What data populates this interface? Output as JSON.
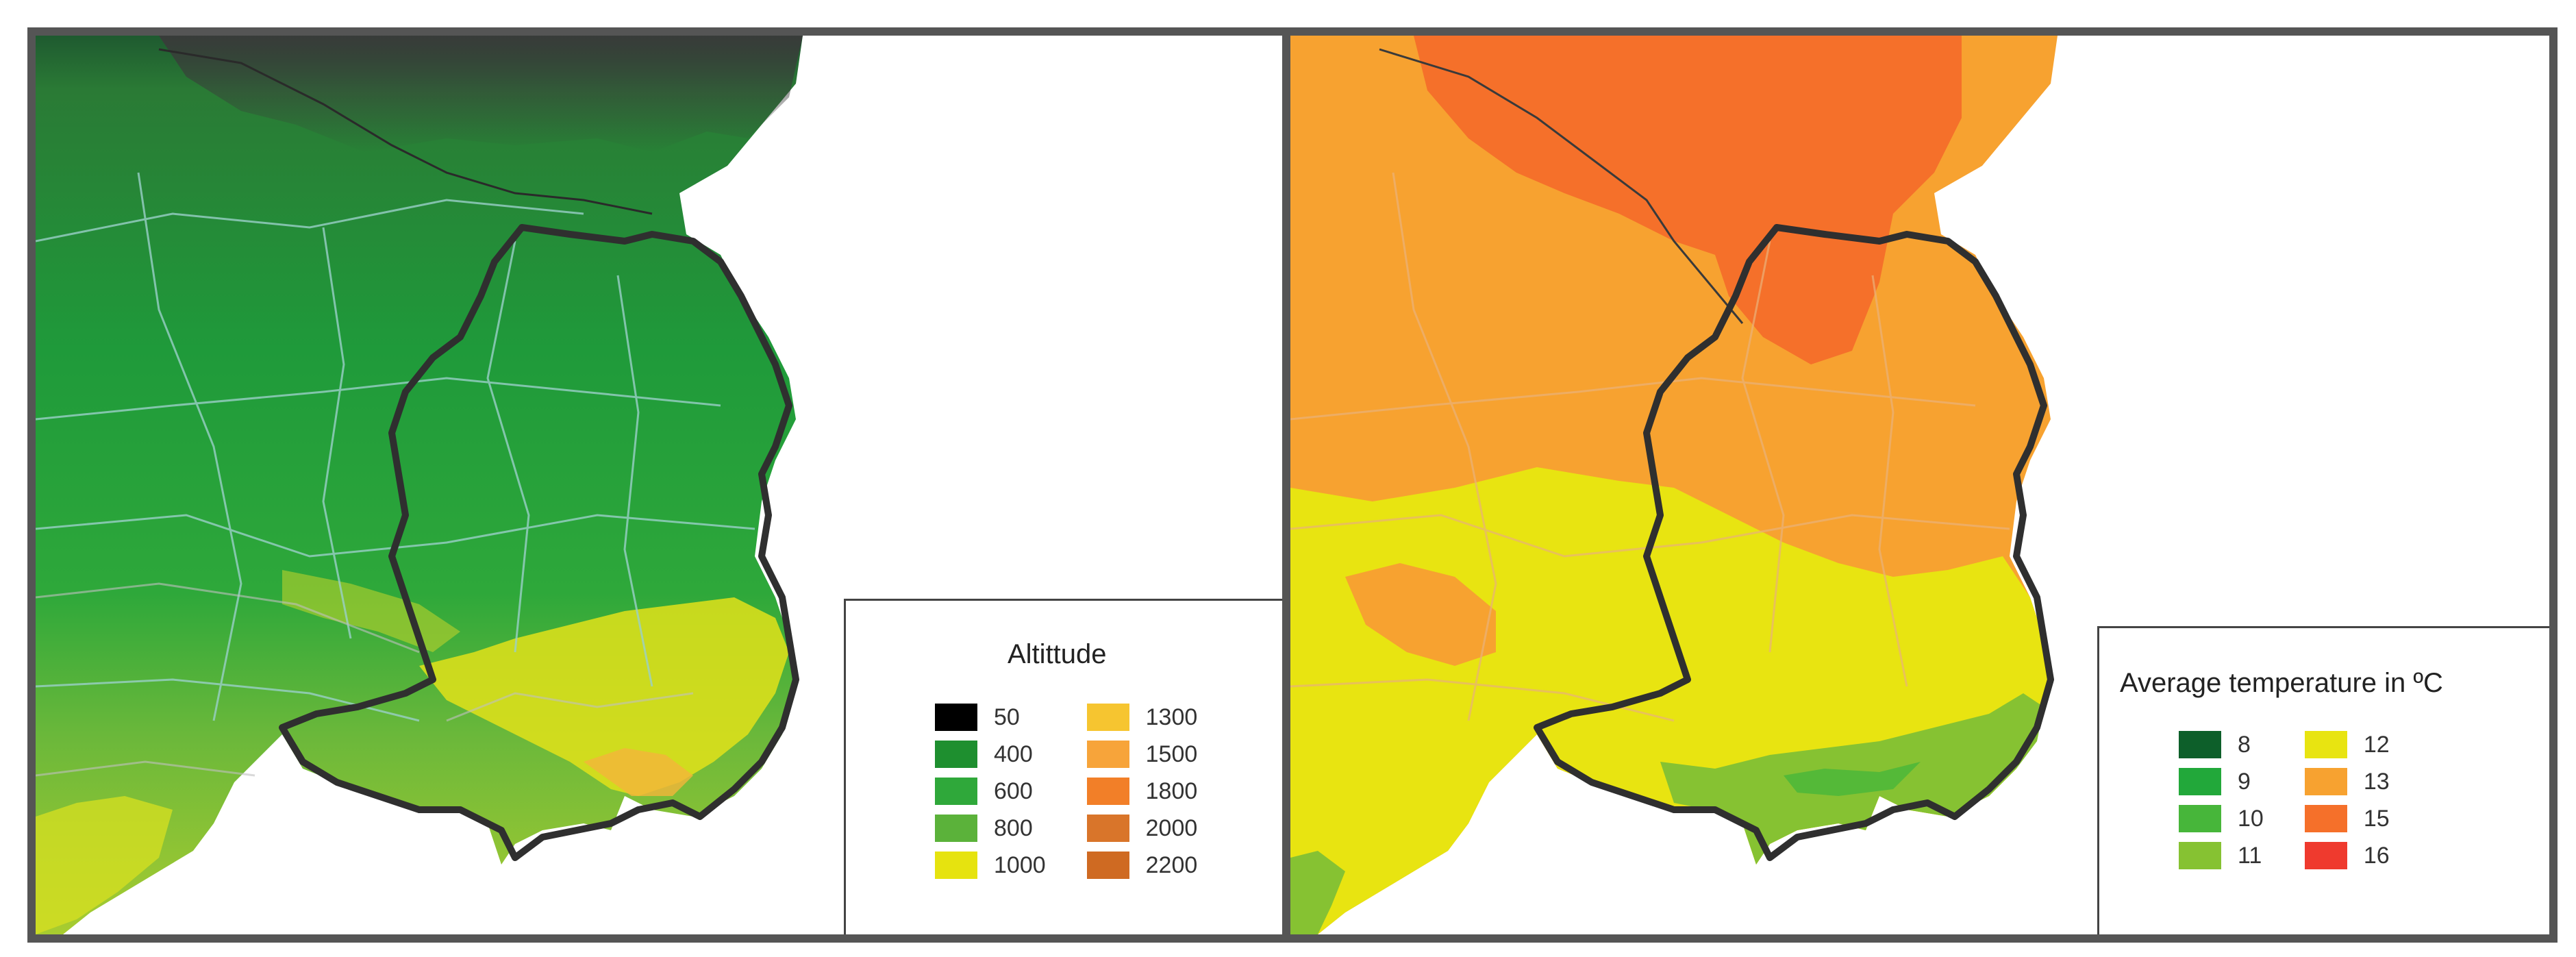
{
  "panels": [
    {
      "legend": {
        "title": "Altittude",
        "items": [
          {
            "label": "50",
            "color": "#000000"
          },
          {
            "label": "400",
            "color": "#1e8f2f"
          },
          {
            "label": "600",
            "color": "#2fa83a"
          },
          {
            "label": "800",
            "color": "#5bb23a"
          },
          {
            "label": "1000",
            "color": "#e6e30f"
          },
          {
            "label": "1300",
            "color": "#f6c530"
          },
          {
            "label": "1500",
            "color": "#f7a43a"
          },
          {
            "label": "1800",
            "color": "#f27f28"
          },
          {
            "label": "2000",
            "color": "#d9752a"
          },
          {
            "label": "2200",
            "color": "#cf6a22"
          }
        ]
      }
    },
    {
      "legend": {
        "title": "Average temperature in ºC",
        "items": [
          {
            "label": "8",
            "color": "#0d5f2a"
          },
          {
            "label": "9",
            "color": "#22a83a"
          },
          {
            "label": "10",
            "color": "#47b63a"
          },
          {
            "label": "11",
            "color": "#86c232"
          },
          {
            "label": "12",
            "color": "#e8e411"
          },
          {
            "label": "13",
            "color": "#f7a230"
          },
          {
            "label": "15",
            "color": "#f5702a"
          },
          {
            "label": "16",
            "color": "#ef3a2e"
          }
        ]
      }
    }
  ]
}
